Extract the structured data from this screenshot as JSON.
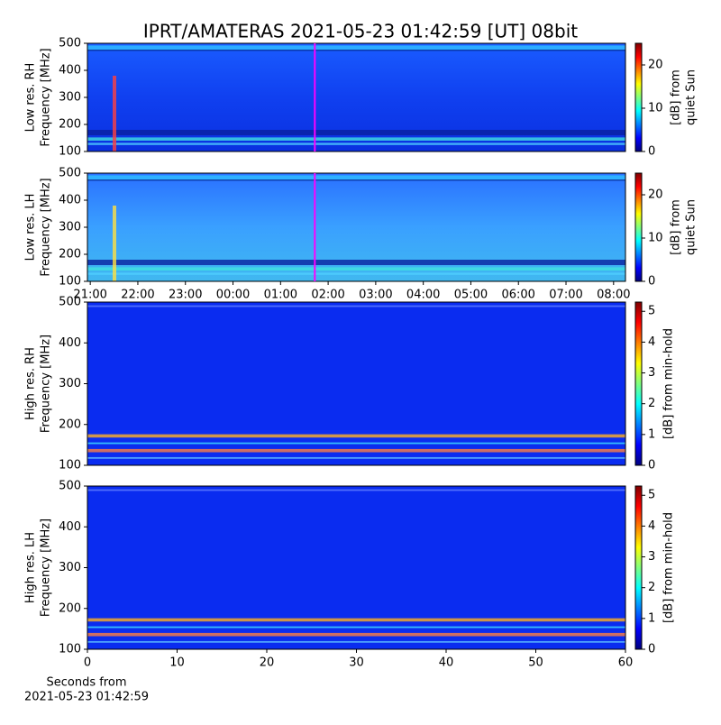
{
  "title": "IPRT/AMATERAS 2021-05-23 01:42:59 [UT]   08bit",
  "chart_data": [
    {
      "type": "spectrogram",
      "ylabel": [
        "Low res. RH",
        "Frequency [MHz]"
      ],
      "ylim": [
        100,
        500
      ],
      "yticks": [
        100,
        200,
        300,
        400,
        500
      ],
      "xlim": [
        20.94,
        32.25
      ],
      "marker_x": 25.72,
      "marker_color": "#ff00ff",
      "colorbar": {
        "label": [
          "[dB] from",
          "quiet Sun"
        ],
        "lim": [
          0,
          25
        ],
        "ticks": [
          0,
          10,
          20
        ]
      }
    },
    {
      "type": "spectrogram",
      "ylabel": [
        "Low res. LH",
        "Frequency [MHz]"
      ],
      "ylim": [
        100,
        500
      ],
      "yticks": [
        100,
        200,
        300,
        400,
        500
      ],
      "xlim": [
        20.94,
        32.25
      ],
      "marker_x": 25.72,
      "marker_color": "#ff00ff",
      "xticks": [
        {
          "value": 21,
          "label": "21:00"
        },
        {
          "value": 22,
          "label": "22:00"
        },
        {
          "value": 23,
          "label": "23:00"
        },
        {
          "value": 24,
          "label": "00:00"
        },
        {
          "value": 25,
          "label": "01:00"
        },
        {
          "value": 26,
          "label": "02:00"
        },
        {
          "value": 27,
          "label": "03:00"
        },
        {
          "value": 28,
          "label": "04:00"
        },
        {
          "value": 29,
          "label": "05:00"
        },
        {
          "value": 30,
          "label": "06:00"
        },
        {
          "value": 31,
          "label": "07:00"
        },
        {
          "value": 32,
          "label": "08:00"
        }
      ],
      "colorbar": {
        "label": [
          "[dB] from",
          "quiet Sun"
        ],
        "lim": [
          0,
          25
        ],
        "ticks": [
          0,
          10,
          20
        ]
      }
    },
    {
      "type": "spectrogram",
      "ylabel": [
        "High res. RH",
        "Frequency [MHz]"
      ],
      "ylim": [
        100,
        500
      ],
      "yticks": [
        100,
        200,
        300,
        400,
        500
      ],
      "xlim": [
        0,
        60
      ],
      "colorbar": {
        "label": [
          "[dB] from min-hold"
        ],
        "lim": [
          0,
          5.3
        ],
        "ticks": [
          0,
          1,
          2,
          3,
          4,
          5
        ]
      }
    },
    {
      "type": "spectrogram",
      "ylabel": [
        "High res. LH",
        "Frequency [MHz]"
      ],
      "ylim": [
        100,
        500
      ],
      "yticks": [
        100,
        200,
        300,
        400,
        500
      ],
      "xlim": [
        0,
        60
      ],
      "xticks": [
        0,
        10,
        20,
        30,
        40,
        50,
        60
      ],
      "xlabel": [
        "Seconds from",
        "2021-05-23 01:42:59"
      ],
      "colorbar": {
        "label": [
          "[dB] from min-hold"
        ],
        "lim": [
          0,
          5.3
        ],
        "ticks": [
          0,
          1,
          2,
          3,
          4,
          5
        ]
      }
    }
  ]
}
